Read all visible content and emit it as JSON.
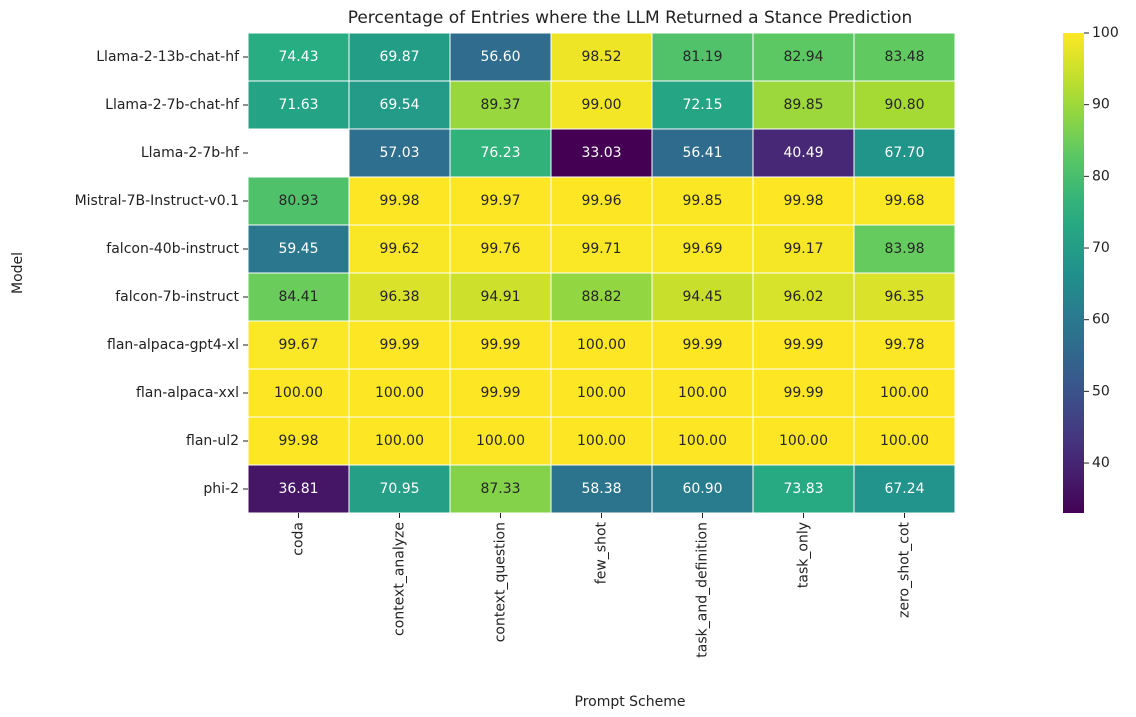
{
  "chart_data": {
    "type": "heatmap",
    "title": "Percentage of Entries where the LLM Returned a Stance Prediction",
    "x_label": "Prompt Scheme",
    "y_label": "Model",
    "x_categories": [
      "coda",
      "context_analyze",
      "context_question",
      "few_shot",
      "task_and_definition",
      "task_only",
      "zero_shot_cot"
    ],
    "y_categories": [
      "Llama-2-13b-chat-hf",
      "Llama-2-7b-chat-hf",
      "Llama-2-7b-hf",
      "Mistral-7B-Instruct-v0.1",
      "falcon-40b-instruct",
      "falcon-7b-instruct",
      "flan-alpaca-gpt4-xl",
      "flan-alpaca-xxl",
      "flan-ul2",
      "phi-2"
    ],
    "values": [
      [
        74.43,
        69.87,
        56.6,
        98.52,
        81.19,
        82.94,
        83.48
      ],
      [
        71.63,
        69.54,
        89.37,
        99,
        72.15,
        89.85,
        90.8
      ],
      [
        null,
        57.03,
        76.23,
        33.03,
        56.41,
        40.49,
        67.7
      ],
      [
        80.93,
        99.98,
        99.97,
        99.96,
        99.85,
        99.98,
        99.68
      ],
      [
        59.45,
        99.62,
        99.76,
        99.71,
        99.69,
        99.17,
        83.98
      ],
      [
        84.41,
        96.38,
        94.91,
        88.82,
        94.45,
        96.02,
        96.35
      ],
      [
        99.67,
        99.99,
        99.99,
        100,
        99.99,
        99.99,
        99.78
      ],
      [
        100,
        100,
        99.99,
        100,
        100,
        99.99,
        100
      ],
      [
        99.98,
        100,
        100,
        100,
        100,
        100,
        100
      ],
      [
        36.81,
        70.95,
        87.33,
        58.38,
        60.9,
        73.83,
        67.24
      ]
    ],
    "value_labels": [
      [
        "74.43",
        "69.87",
        "56.60",
        "98.52",
        "81.19",
        "82.94",
        "83.48"
      ],
      [
        "71.63",
        "69.54",
        "89.37",
        "99.00",
        "72.15",
        "89.85",
        "90.80"
      ],
      [
        null,
        "57.03",
        "76.23",
        "33.03",
        "56.41",
        "40.49",
        "67.70"
      ],
      [
        "80.93",
        "99.98",
        "99.97",
        "99.96",
        "99.85",
        "99.98",
        "99.68"
      ],
      [
        "59.45",
        "99.62",
        "99.76",
        "99.71",
        "99.69",
        "99.17",
        "83.98"
      ],
      [
        "84.41",
        "96.38",
        "94.91",
        "88.82",
        "94.45",
        "96.02",
        "96.35"
      ],
      [
        "99.67",
        "99.99",
        "99.99",
        "100.00",
        "99.99",
        "99.99",
        "99.78"
      ],
      [
        "100.00",
        "100.00",
        "99.99",
        "100.00",
        "100.00",
        "99.99",
        "100.00"
      ],
      [
        "99.98",
        "100.00",
        "100.00",
        "100.00",
        "100.00",
        "100.00",
        "100.00"
      ],
      [
        "36.81",
        "70.95",
        "87.33",
        "58.38",
        "60.90",
        "73.83",
        "67.24"
      ]
    ],
    "colorscale": "viridis",
    "zlim": [
      33.03,
      100
    ],
    "zticks": [
      40,
      50,
      60,
      70,
      80,
      90,
      100
    ]
  }
}
